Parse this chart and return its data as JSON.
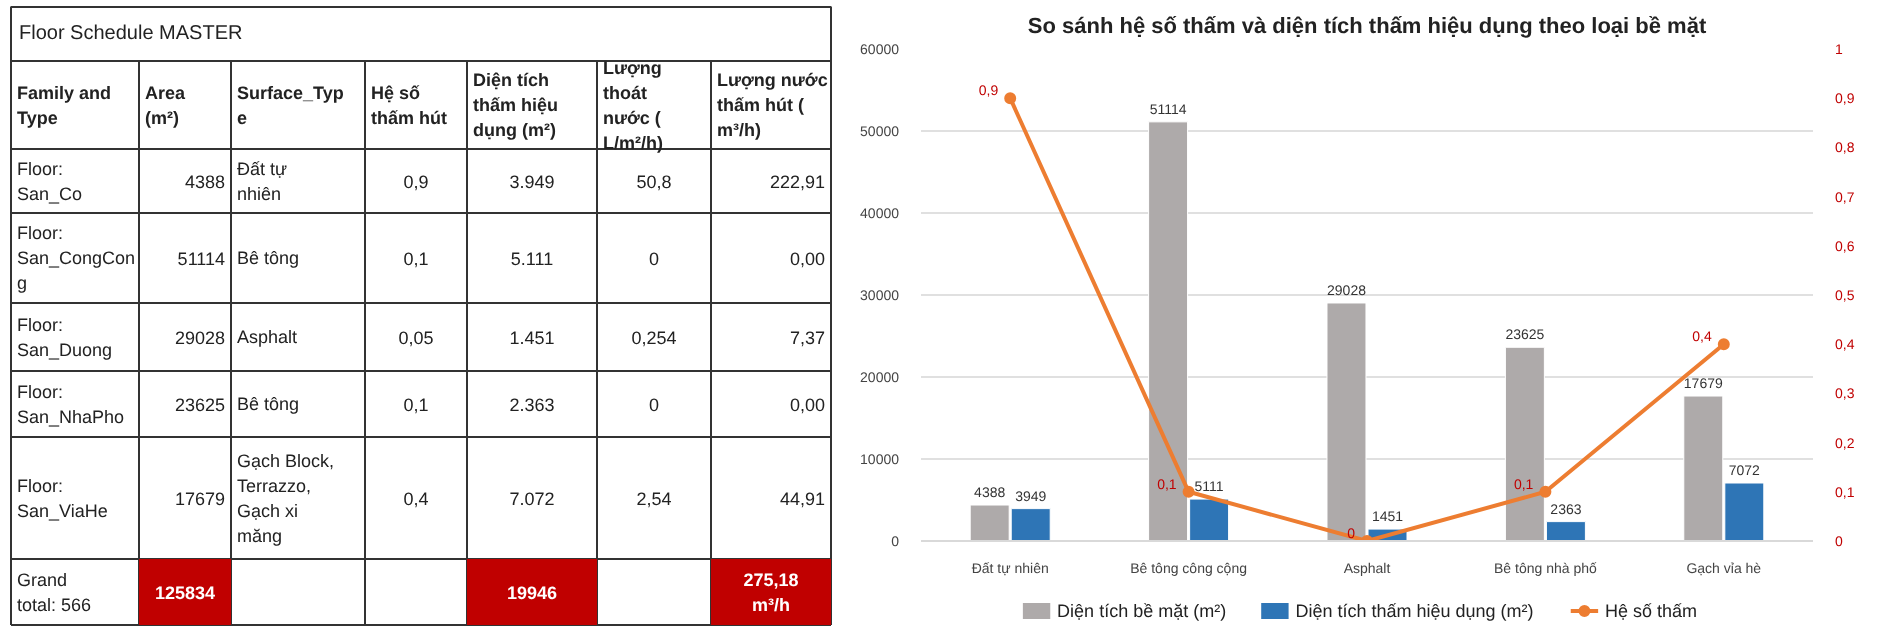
{
  "chart_data": [
    {
      "type": "other",
      "title": "Floor Schedule MASTER",
      "categories": [
        "Family and Type",
        "Area (m²)",
        "Surface_Type",
        "Hệ số thấm hút",
        "Diện tích thấm hiệu dụng (m²)",
        "Lượng thoát nước ( L/m²/h)",
        "Lượng nước thấm hút ( m³/h)"
      ],
      "cell_labels": [
        [
          "Floor: San_Co",
          "4388",
          "Đất tự nhiên",
          "0,9",
          "3.949",
          "50,8",
          "222,91"
        ],
        [
          "Floor: San_CongCong",
          "51114",
          "Bê tông",
          "0,1",
          "5.111",
          "0",
          "0,00"
        ],
        [
          "Floor: San_Duong",
          "29028",
          "Asphalt",
          "0,05",
          "1.451",
          "0,254",
          "7,37"
        ],
        [
          "Floor: San_NhaPho",
          "23625",
          "Bê tông",
          "0,1",
          "2.363",
          "0",
          "0,00"
        ],
        [
          "Floor: San_ViaHe",
          "17679",
          "Gạch Block, Terrazzo, Gạch xi măng",
          "0,4",
          "7.072",
          "2,54",
          "44,91"
        ],
        [
          "Grand total: 566",
          "125834",
          null,
          null,
          "19946",
          null,
          "275,18 m³/h"
        ]
      ],
      "colors": [
        null,
        null,
        null,
        null,
        null,
        [
          "#ffffff",
          "#c00000",
          "#ffffff",
          "#ffffff",
          "#c00000",
          "#ffffff",
          "#c00000"
        ]
      ]
    },
    {
      "type": "bar",
      "title": "So sánh hệ số thấm và diện tích thấm hiệu dụng theo loại bề mặt",
      "categories": [
        "Đất tự nhiên",
        "Bê tông công cộng",
        "Asphalt",
        "Bê tông nhà phố",
        "Gạch vỉa hè"
      ],
      "series": [
        {
          "name": "Diện tích bề mặt (m²)",
          "color": "#aeaaaa",
          "values": [
            4388,
            51114,
            29028,
            23625,
            17679
          ],
          "value_labels": [
            "4388",
            "51114",
            "29028",
            "23625",
            "17679"
          ]
        },
        {
          "name": "Diện tích thấm hiệu dụng (m²)",
          "color": "#2e75b6",
          "values": [
            3949,
            5111,
            1451,
            2363,
            7072
          ],
          "value_labels": [
            "3949",
            "5111",
            "1451",
            "2363",
            "7072"
          ]
        },
        {
          "name": "Hệ số thấm",
          "type": "line",
          "axis": "y2",
          "marker": "circle",
          "color": "#ed7d31",
          "values": [
            0.9,
            0.1,
            0,
            0.1,
            0.4
          ],
          "value_labels": [
            "0,9",
            "0,1",
            "0",
            "0,1",
            "0,4"
          ]
        }
      ],
      "ylim": [
        0,
        60000
      ],
      "yticks": [
        0,
        10000,
        20000,
        30000,
        40000,
        50000,
        60000
      ],
      "y2lim": [
        0,
        1
      ],
      "y2ticks": [
        {
          "value": 0,
          "label": "0"
        },
        {
          "value": 0.1,
          "label": "0,1"
        },
        {
          "value": 0.2,
          "label": "0,2"
        },
        {
          "value": 0.3,
          "label": "0,3"
        },
        {
          "value": 0.4,
          "label": "0,4"
        },
        {
          "value": 0.5,
          "label": "0,5"
        },
        {
          "value": 0.6,
          "label": "0,6"
        },
        {
          "value": 0.7,
          "label": "0,7"
        },
        {
          "value": 0.8,
          "label": "0,8"
        },
        {
          "value": 0.9,
          "label": "0,9"
        },
        {
          "value": 1,
          "label": "1"
        }
      ],
      "grid": "y",
      "legend": "bottom"
    }
  ]
}
